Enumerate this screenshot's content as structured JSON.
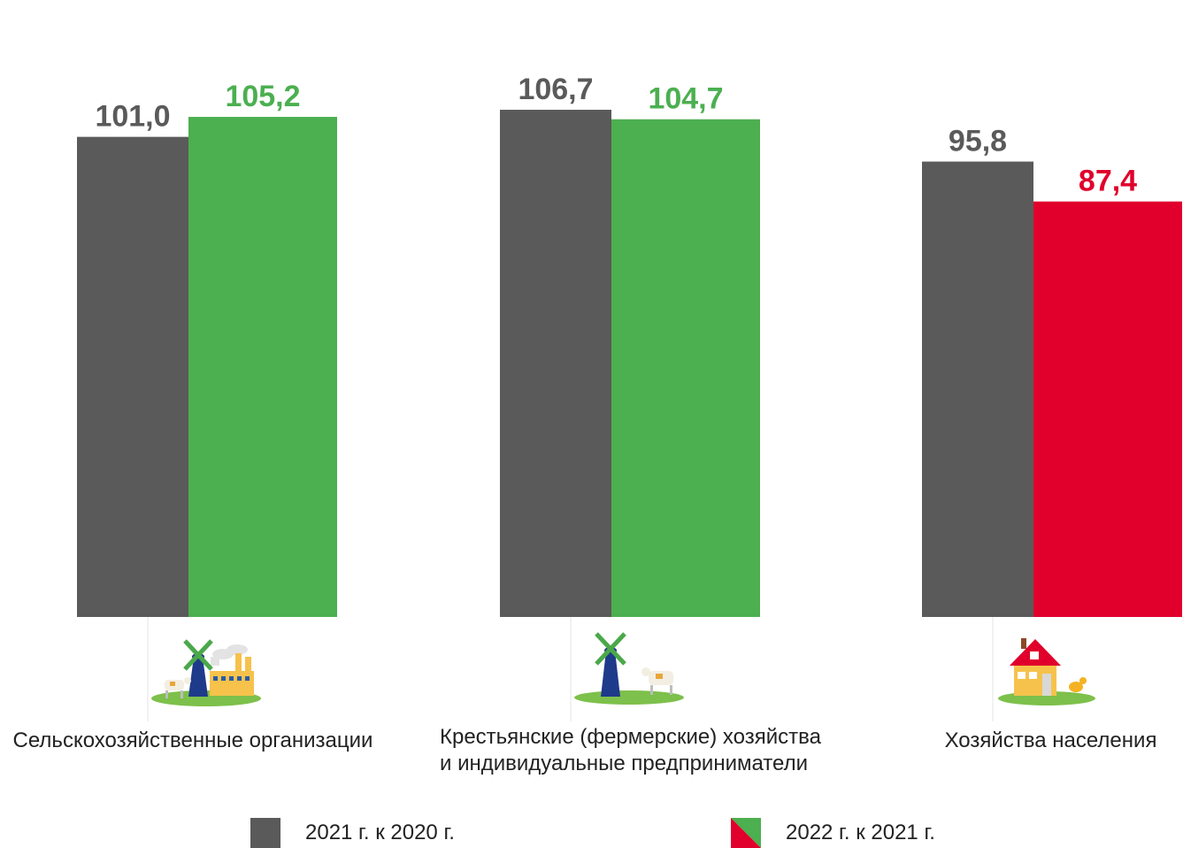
{
  "chart_data": {
    "type": "bar",
    "categories": [
      "Сельскохозяйственные организации",
      "Крестьянские (фермерские) хозяйства и индивидуальные предприниматели",
      "Хозяйства населения"
    ],
    "series": [
      {
        "name": "2021 г. к 2020 г.",
        "values": [
          101.0,
          106.7,
          95.8
        ],
        "labels": [
          "101,0",
          "106,7",
          "95,8"
        ],
        "color": "#5a5a5a"
      },
      {
        "name": "2022 г. к 2021 г.",
        "values": [
          105.2,
          104.7,
          87.4
        ],
        "labels": [
          "105,2",
          "104,7",
          "87,4"
        ],
        "colors": [
          "#4caf50",
          "#4caf50",
          "#e0002b"
        ]
      }
    ]
  },
  "categories": {
    "cat1": "Сельскохозяйственные организации",
    "cat2_line1": "Крестьянские (фермерские) хозяйства",
    "cat2_line2": "и индивидуальные предприниматели",
    "cat3": "Хозяйства населения"
  },
  "legend": {
    "item1": "2021 г. к 2020 г.",
    "item2": "2022 г. к 2021 г."
  },
  "icons": [
    "windmill-factory-farm-icon",
    "windmill-cow-farm-icon",
    "house-chicken-icon"
  ],
  "colors": {
    "gray": "#5a5a5a",
    "green": "#4caf50",
    "red": "#e0002b"
  }
}
